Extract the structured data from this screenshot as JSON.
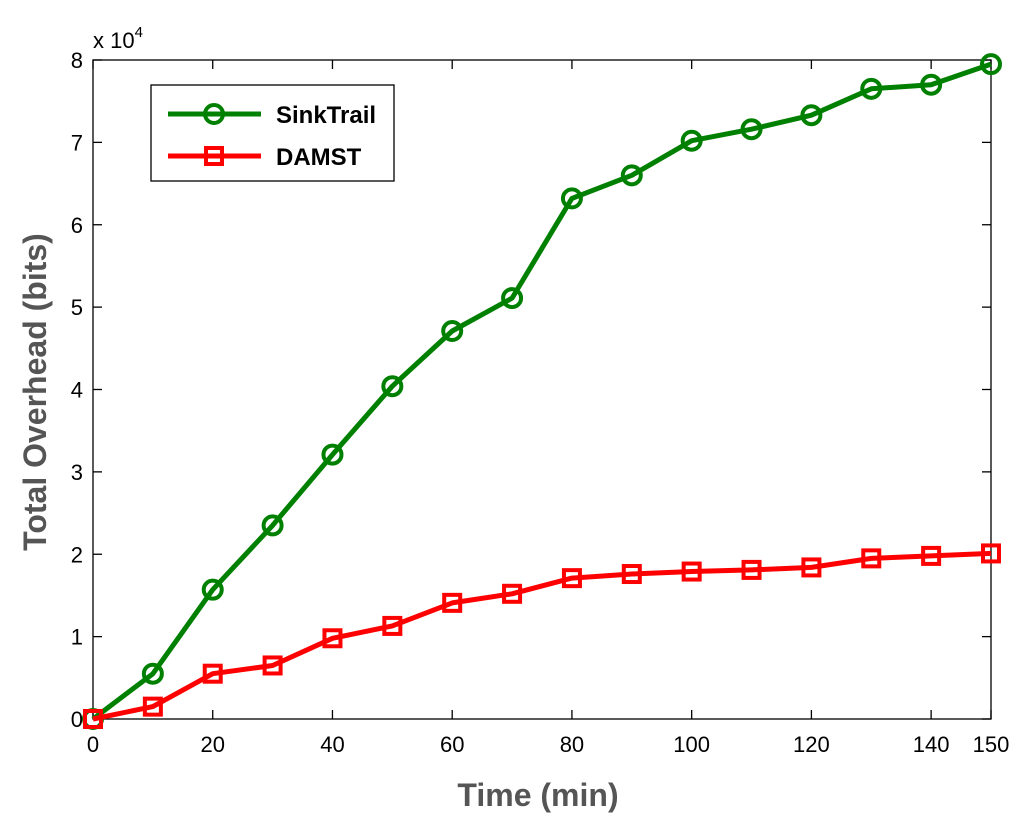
{
  "chart_data": {
    "type": "line",
    "title": "",
    "xlabel": "Time (min)",
    "ylabel": "Total Overhead (bits)",
    "xlim": [
      0,
      150
    ],
    "ylim": [
      0,
      8
    ],
    "xticks": [
      0,
      20,
      40,
      60,
      80,
      100,
      120,
      140,
      150
    ],
    "yticks": [
      0,
      1,
      2,
      3,
      4,
      5,
      6,
      7,
      8
    ],
    "xtick_labels": [
      "0",
      "20",
      "40",
      "60",
      "80",
      "100",
      "120",
      "140",
      "150"
    ],
    "ytick_labels": [
      "0",
      "1",
      "2",
      "3",
      "4",
      "5",
      "6",
      "7",
      "8"
    ],
    "y_multiplier": {
      "base": "x 10",
      "exponent": "4"
    },
    "grid": false,
    "legend_position": "top-left",
    "x": [
      0,
      10,
      20,
      30,
      40,
      50,
      60,
      70,
      80,
      90,
      100,
      110,
      120,
      130,
      140,
      150
    ],
    "series": [
      {
        "name": "SinkTrail",
        "color": "#008000",
        "marker": "circle",
        "values": [
          0,
          0.55,
          1.57,
          2.35,
          3.21,
          4.04,
          4.71,
          5.11,
          6.32,
          6.6,
          7.02,
          7.16,
          7.33,
          7.65,
          7.7,
          7.95
        ]
      },
      {
        "name": "DAMST",
        "color": "#ff0000",
        "marker": "square",
        "values": [
          0,
          0.15,
          0.55,
          0.65,
          0.98,
          1.13,
          1.41,
          1.52,
          1.71,
          1.76,
          1.79,
          1.81,
          1.84,
          1.95,
          1.98,
          2.01
        ]
      }
    ]
  }
}
